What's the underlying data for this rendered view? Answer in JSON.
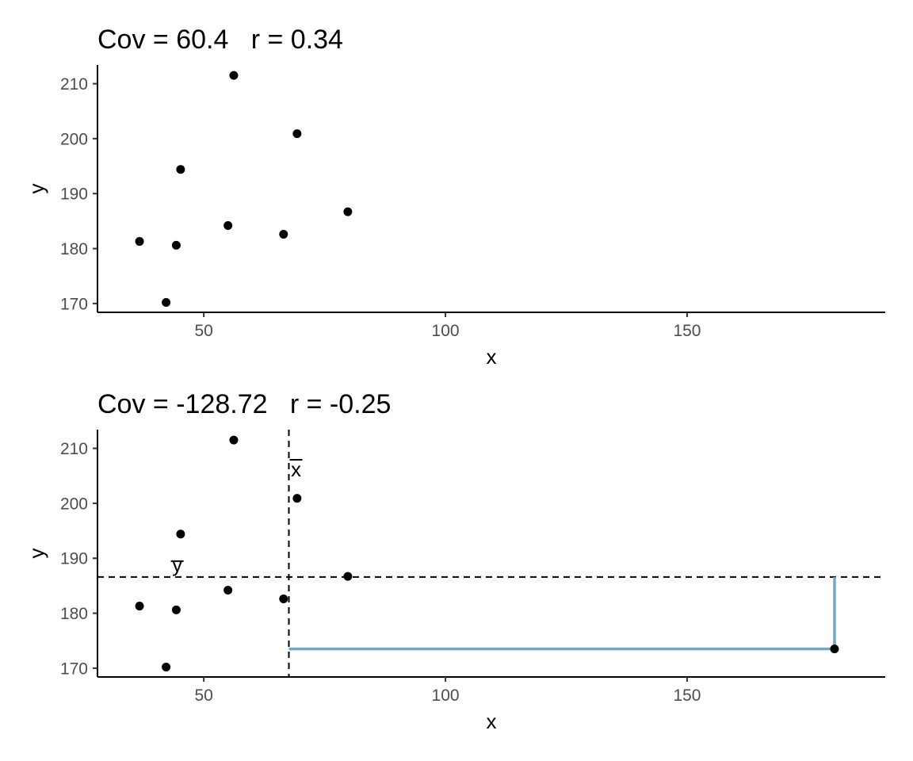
{
  "chart_data": [
    {
      "type": "scatter",
      "title": "Cov = 60.4   r = 0.34",
      "xlabel": "x",
      "ylabel": "y",
      "xlim": [
        28,
        191
      ],
      "ylim": [
        168.4,
        213.4
      ],
      "xticks": [
        50,
        100,
        150
      ],
      "yticks": [
        170,
        180,
        190,
        200,
        210
      ],
      "xtick_labels": [
        "50",
        "100",
        "150"
      ],
      "ytick_labels": [
        "170",
        "180",
        "190",
        "200",
        "210"
      ],
      "grid": false,
      "points": [
        {
          "x": 36.7,
          "y": 181.3
        },
        {
          "x": 42.2,
          "y": 170.2
        },
        {
          "x": 44.3,
          "y": 180.6
        },
        {
          "x": 45.2,
          "y": 194.4
        },
        {
          "x": 55.0,
          "y": 184.2
        },
        {
          "x": 56.2,
          "y": 211.5
        },
        {
          "x": 66.5,
          "y": 182.6
        },
        {
          "x": 69.3,
          "y": 200.9
        },
        {
          "x": 79.8,
          "y": 186.7
        }
      ]
    },
    {
      "type": "scatter",
      "title": "Cov = -128.72   r = -0.25",
      "xlabel": "x",
      "ylabel": "y",
      "xlim": [
        28,
        191
      ],
      "ylim": [
        168.4,
        213.4
      ],
      "xticks": [
        50,
        100,
        150
      ],
      "yticks": [
        170,
        180,
        190,
        200,
        210
      ],
      "xtick_labels": [
        "50",
        "100",
        "150"
      ],
      "ytick_labels": [
        "170",
        "180",
        "190",
        "200",
        "210"
      ],
      "grid": false,
      "points": [
        {
          "x": 36.7,
          "y": 181.3
        },
        {
          "x": 42.2,
          "y": 170.2
        },
        {
          "x": 44.3,
          "y": 180.6
        },
        {
          "x": 45.2,
          "y": 194.4
        },
        {
          "x": 55.0,
          "y": 184.2
        },
        {
          "x": 56.2,
          "y": 211.5
        },
        {
          "x": 66.5,
          "y": 182.6
        },
        {
          "x": 69.3,
          "y": 200.9
        },
        {
          "x": 79.8,
          "y": 186.7
        },
        {
          "x": 180.5,
          "y": 173.5
        }
      ],
      "mean_x": 67.6,
      "mean_y": 186.6,
      "mean_x_label": "x",
      "mean_y_label": "y",
      "highlight_point": {
        "x": 180.5,
        "y": 173.5
      },
      "highlight_color": "#6fa8cc"
    }
  ]
}
